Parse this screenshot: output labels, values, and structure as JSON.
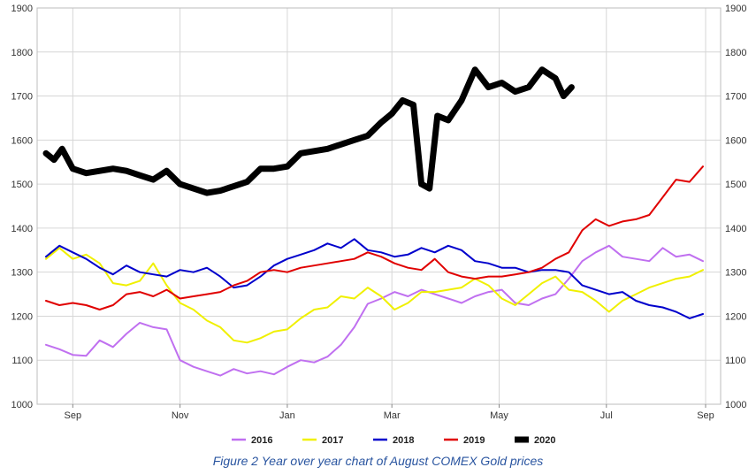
{
  "caption": "Figure 2 Year over year chart of August COMEX Gold prices",
  "chart_data": {
    "type": "line",
    "title": "",
    "xlabel": "",
    "ylabel": "",
    "ylim": [
      1000,
      1900
    ],
    "yticks": [
      1000,
      1100,
      1200,
      1300,
      1400,
      1500,
      1600,
      1700,
      1800,
      1900
    ],
    "y_axis_sides": [
      "left",
      "right"
    ],
    "grid": "vertical and horizontal",
    "legend_position": "bottom",
    "x_unit": "months since late August",
    "xlim": [
      0,
      12.3
    ],
    "xticks": [
      {
        "label": "Sep",
        "x": 0.5
      },
      {
        "label": "Nov",
        "x": 2.5
      },
      {
        "label": "Jan",
        "x": 4.5
      },
      {
        "label": "Mar",
        "x": 6.45
      },
      {
        "label": "May",
        "x": 8.45
      },
      {
        "label": "Jul",
        "x": 10.45
      },
      {
        "label": "Sep",
        "x": 12.45
      }
    ],
    "series": [
      {
        "name": "2016",
        "color": "#c070f0",
        "width": 2,
        "x": [
          0.0,
          0.25,
          0.5,
          0.75,
          1.0,
          1.25,
          1.5,
          1.75,
          2.0,
          2.25,
          2.5,
          2.75,
          3.0,
          3.25,
          3.5,
          3.75,
          4.0,
          4.25,
          4.5,
          4.75,
          5.0,
          5.25,
          5.5,
          5.75,
          6.0,
          6.25,
          6.5,
          6.75,
          7.0,
          7.25,
          7.5,
          7.75,
          8.0,
          8.25,
          8.5,
          8.75,
          9.0,
          9.25,
          9.5,
          9.75,
          10.0,
          10.25,
          10.5,
          10.75,
          11.0,
          11.25,
          11.5,
          11.75,
          12.0,
          12.25
        ],
        "values": [
          1135,
          1125,
          1112,
          1110,
          1145,
          1130,
          1160,
          1185,
          1175,
          1170,
          1100,
          1085,
          1075,
          1065,
          1080,
          1070,
          1075,
          1068,
          1085,
          1100,
          1095,
          1108,
          1135,
          1175,
          1228,
          1240,
          1255,
          1245,
          1260,
          1250,
          1240,
          1230,
          1245,
          1255,
          1260,
          1230,
          1225,
          1240,
          1250,
          1285,
          1325,
          1345,
          1360,
          1335,
          1330,
          1325,
          1355,
          1335,
          1340,
          1325
        ]
      },
      {
        "name": "2017",
        "color": "#f0f000",
        "width": 2,
        "x": [
          0.0,
          0.25,
          0.5,
          0.75,
          1.0,
          1.25,
          1.5,
          1.75,
          2.0,
          2.25,
          2.5,
          2.75,
          3.0,
          3.25,
          3.5,
          3.75,
          4.0,
          4.25,
          4.5,
          4.75,
          5.0,
          5.25,
          5.5,
          5.75,
          6.0,
          6.25,
          6.5,
          6.75,
          7.0,
          7.25,
          7.5,
          7.75,
          8.0,
          8.25,
          8.5,
          8.75,
          9.0,
          9.25,
          9.5,
          9.75,
          10.0,
          10.25,
          10.5,
          10.75,
          11.0,
          11.25,
          11.5,
          11.75,
          12.0,
          12.25
        ],
        "values": [
          1330,
          1355,
          1330,
          1340,
          1320,
          1275,
          1270,
          1280,
          1320,
          1270,
          1230,
          1215,
          1190,
          1175,
          1145,
          1140,
          1150,
          1165,
          1170,
          1195,
          1215,
          1220,
          1245,
          1240,
          1265,
          1245,
          1215,
          1230,
          1255,
          1255,
          1260,
          1265,
          1285,
          1270,
          1240,
          1225,
          1250,
          1275,
          1290,
          1260,
          1255,
          1235,
          1210,
          1235,
          1250,
          1265,
          1275,
          1285,
          1290,
          1305
        ]
      },
      {
        "name": "2018",
        "color": "#0000cc",
        "width": 2,
        "x": [
          0.0,
          0.25,
          0.5,
          0.75,
          1.0,
          1.25,
          1.5,
          1.75,
          2.0,
          2.25,
          2.5,
          2.75,
          3.0,
          3.25,
          3.5,
          3.75,
          4.0,
          4.25,
          4.5,
          4.75,
          5.0,
          5.25,
          5.5,
          5.75,
          6.0,
          6.25,
          6.5,
          6.75,
          7.0,
          7.25,
          7.5,
          7.75,
          8.0,
          8.25,
          8.5,
          8.75,
          9.0,
          9.25,
          9.5,
          9.75,
          10.0,
          10.25,
          10.5,
          10.75,
          11.0,
          11.25,
          11.5,
          11.75,
          12.0,
          12.25
        ],
        "values": [
          1335,
          1360,
          1345,
          1330,
          1310,
          1295,
          1315,
          1300,
          1295,
          1290,
          1305,
          1300,
          1310,
          1290,
          1265,
          1270,
          1290,
          1315,
          1330,
          1340,
          1350,
          1365,
          1355,
          1375,
          1350,
          1345,
          1335,
          1340,
          1355,
          1345,
          1360,
          1350,
          1325,
          1320,
          1310,
          1310,
          1300,
          1305,
          1305,
          1300,
          1270,
          1260,
          1250,
          1255,
          1235,
          1225,
          1220,
          1210,
          1195,
          1205
        ]
      },
      {
        "name": "2019",
        "color": "#e00000",
        "width": 2,
        "x": [
          0.0,
          0.25,
          0.5,
          0.75,
          1.0,
          1.25,
          1.5,
          1.75,
          2.0,
          2.25,
          2.5,
          2.75,
          3.0,
          3.25,
          3.5,
          3.75,
          4.0,
          4.25,
          4.5,
          4.75,
          5.0,
          5.25,
          5.5,
          5.75,
          6.0,
          6.25,
          6.5,
          6.75,
          7.0,
          7.25,
          7.5,
          7.75,
          8.0,
          8.25,
          8.5,
          8.75,
          9.0,
          9.25,
          9.5,
          9.75,
          10.0,
          10.25,
          10.5,
          10.75,
          11.0,
          11.25,
          11.5,
          11.75,
          12.0,
          12.25
        ],
        "values": [
          1235,
          1225,
          1230,
          1225,
          1215,
          1225,
          1250,
          1255,
          1245,
          1260,
          1240,
          1245,
          1250,
          1255,
          1270,
          1280,
          1300,
          1305,
          1300,
          1310,
          1315,
          1320,
          1325,
          1330,
          1345,
          1335,
          1320,
          1310,
          1305,
          1330,
          1300,
          1290,
          1285,
          1290,
          1290,
          1295,
          1300,
          1310,
          1330,
          1345,
          1395,
          1420,
          1405,
          1415,
          1420,
          1430,
          1470,
          1510,
          1505,
          1540
        ]
      },
      {
        "name": "2020",
        "color": "#000000",
        "width": 7,
        "x": [
          0.0,
          0.15,
          0.3,
          0.5,
          0.75,
          1.0,
          1.25,
          1.5,
          1.75,
          2.0,
          2.25,
          2.5,
          2.75,
          3.0,
          3.25,
          3.5,
          3.75,
          4.0,
          4.25,
          4.5,
          4.75,
          5.0,
          5.25,
          5.5,
          5.75,
          6.0,
          6.25,
          6.45,
          6.65,
          6.85,
          7.0,
          7.15,
          7.3,
          7.5,
          7.75,
          8.0,
          8.25,
          8.5,
          8.75,
          9.0,
          9.25,
          9.5,
          9.65,
          9.8
        ],
        "values": [
          1570,
          1555,
          1580,
          1535,
          1525,
          1530,
          1535,
          1530,
          1520,
          1510,
          1530,
          1500,
          1490,
          1480,
          1485,
          1495,
          1505,
          1535,
          1535,
          1540,
          1570,
          1575,
          1580,
          1590,
          1600,
          1610,
          1640,
          1660,
          1690,
          1680,
          1500,
          1490,
          1655,
          1645,
          1690,
          1760,
          1720,
          1730,
          1710,
          1720,
          1760,
          1740,
          1700,
          1720
        ]
      }
    ]
  }
}
